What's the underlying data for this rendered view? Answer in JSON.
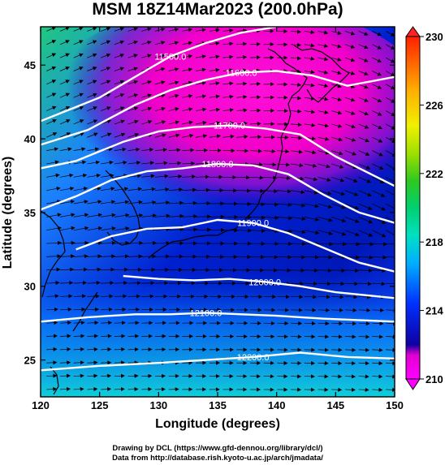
{
  "title": "MSM 18Z14Mar2023 (200.0hPa)",
  "x_axis": {
    "label": "Longitude (degrees)",
    "range": [
      120,
      150
    ],
    "ticks": [
      "120",
      "125",
      "130",
      "135",
      "140",
      "145",
      "150"
    ]
  },
  "y_axis": {
    "label": "Latitude  (degrees)",
    "range": [
      22.5,
      47.6
    ],
    "ticks": [
      "25",
      "30",
      "35",
      "40",
      "45"
    ]
  },
  "colorbar": {
    "min": 210,
    "max": 230,
    "ticks": [
      "210",
      "214",
      "218",
      "222",
      "226",
      "230"
    ],
    "colors": [
      "#ff00ff",
      "#e800d8",
      "#0000e0",
      "#0040ff",
      "#00c8ff",
      "#00e6b4",
      "#00d060",
      "#40d020",
      "#c8e600",
      "#ffd000",
      "#ff6000",
      "#ff2000"
    ]
  },
  "contours": [
    {
      "label": "11500.0",
      "points": [
        [
          120,
          41.2
        ],
        [
          125,
          42.8
        ],
        [
          128,
          44.2
        ],
        [
          131,
          45.6
        ],
        [
          134,
          46.5
        ],
        [
          137,
          47.2
        ],
        [
          140,
          47.6
        ]
      ]
    },
    {
      "label": "11600.0",
      "points": [
        [
          120,
          39.6
        ],
        [
          124,
          40.6
        ],
        [
          128,
          42.3
        ],
        [
          131,
          43.3
        ],
        [
          134,
          44.0
        ],
        [
          137,
          44.5
        ],
        [
          140,
          44.6
        ],
        [
          143,
          44.3
        ],
        [
          146,
          43.6
        ],
        [
          150,
          44.2
        ]
      ]
    },
    {
      "label": "11700.0",
      "points": [
        [
          120,
          38.0
        ],
        [
          123,
          38.5
        ],
        [
          127,
          39.8
        ],
        [
          130,
          40.5
        ],
        [
          133,
          40.8
        ],
        [
          136,
          40.9
        ],
        [
          139,
          40.7
        ],
        [
          142,
          40.3
        ],
        [
          145,
          38.8
        ],
        [
          150,
          36.8
        ]
      ]
    },
    {
      "label": "11800.0",
      "points": [
        [
          120,
          35.2
        ],
        [
          123,
          36.1
        ],
        [
          126,
          37.2
        ],
        [
          129,
          37.8
        ],
        [
          132,
          38.0
        ],
        [
          135,
          38.3
        ],
        [
          138,
          38.2
        ],
        [
          141,
          37.6
        ],
        [
          144,
          36.2
        ],
        [
          147,
          35.0
        ],
        [
          150,
          34.3
        ]
      ]
    },
    {
      "label": "11900.0",
      "points": [
        [
          123,
          32.5
        ],
        [
          126,
          33.4
        ],
        [
          129,
          33.9
        ],
        [
          132,
          34.0
        ],
        [
          135,
          34.5
        ],
        [
          138,
          34.3
        ],
        [
          141,
          33.6
        ],
        [
          144,
          32.6
        ],
        [
          147,
          31.6
        ],
        [
          150,
          31.0
        ]
      ]
    },
    {
      "label": "12000.0",
      "points": [
        [
          127,
          30.7
        ],
        [
          130,
          30.5
        ],
        [
          133,
          30.4
        ],
        [
          136,
          30.5
        ],
        [
          139,
          30.3
        ],
        [
          142,
          30.0
        ],
        [
          145,
          29.6
        ],
        [
          150,
          29.2
        ]
      ]
    },
    {
      "label": "12100.0",
      "points": [
        [
          120,
          27.6
        ],
        [
          124,
          27.9
        ],
        [
          128,
          28.1
        ],
        [
          131,
          28.1
        ],
        [
          134,
          28.2
        ],
        [
          137,
          28.1
        ],
        [
          140,
          28.0
        ],
        [
          144,
          27.8
        ],
        [
          150,
          27.6
        ]
      ]
    },
    {
      "label": "12200.0",
      "points": [
        [
          120,
          24.3
        ],
        [
          125,
          24.6
        ],
        [
          130,
          24.8
        ],
        [
          134,
          25.0
        ],
        [
          138,
          25.2
        ],
        [
          142,
          25.5
        ],
        [
          146,
          25.2
        ],
        [
          150,
          25.1
        ]
      ]
    }
  ],
  "credits": [
    "Drawing by DCL (https://www.gfd-dennou.org/library/dcl/)",
    "Data from http://database.rish.kyoto-u.ac.jp/arch/jmadata/"
  ]
}
